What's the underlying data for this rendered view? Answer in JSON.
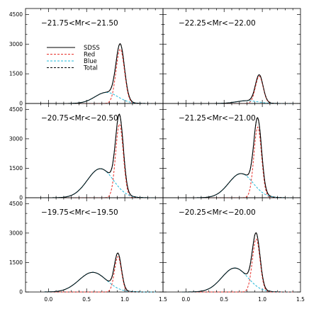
{
  "chart_data": {
    "type": "line",
    "layout": "3x2 panel grid sharing axes",
    "xlim": [
      -0.3,
      1.5
    ],
    "ylim": [
      0,
      4800
    ],
    "x_ticks": [
      "0.0",
      "0.5",
      "1.0",
      "1.5"
    ],
    "y_ticks": [
      "0",
      "1500",
      "3000",
      "4500"
    ],
    "legend": {
      "panel": "top-left",
      "placement": "left",
      "entries": [
        {
          "label": "SDSS",
          "color": "#000000",
          "style": "solid"
        },
        {
          "label": "Red",
          "color": "#e8302a",
          "style": "dashed"
        },
        {
          "label": "Blue",
          "color": "#22b8d8",
          "style": "dashed"
        },
        {
          "label": "Total",
          "color": "#000000",
          "style": "dashed"
        }
      ]
    },
    "panels": [
      {
        "label": "−21.75<Mr<−21.50",
        "red": {
          "amp": 2750,
          "mu": 0.94,
          "sigma": 0.055
        },
        "blue": {
          "amp": 560,
          "mu": 0.76,
          "sigma": 0.15
        }
      },
      {
        "label": "−22.25<Mr<−22.00",
        "red": {
          "amp": 1380,
          "mu": 0.96,
          "sigma": 0.05
        },
        "blue": {
          "amp": 140,
          "mu": 0.8,
          "sigma": 0.14
        }
      },
      {
        "label": "−20.75<Mr<−20.50",
        "red": {
          "amp": 3750,
          "mu": 0.93,
          "sigma": 0.05
        },
        "blue": {
          "amp": 1480,
          "mu": 0.68,
          "sigma": 0.17
        }
      },
      {
        "label": "−21.25<Mr<−21.00",
        "red": {
          "amp": 3600,
          "mu": 0.94,
          "sigma": 0.05
        },
        "blue": {
          "amp": 1230,
          "mu": 0.72,
          "sigma": 0.16
        }
      },
      {
        "label": "−19.75<Mr<−19.50",
        "red": {
          "amp": 1800,
          "mu": 0.91,
          "sigma": 0.045
        },
        "blue": {
          "amp": 1000,
          "mu": 0.58,
          "sigma": 0.18
        }
      },
      {
        "label": "−20.25<Mr<−20.00",
        "red": {
          "amp": 2700,
          "mu": 0.92,
          "sigma": 0.05
        },
        "blue": {
          "amp": 1220,
          "mu": 0.64,
          "sigma": 0.17
        }
      }
    ]
  }
}
